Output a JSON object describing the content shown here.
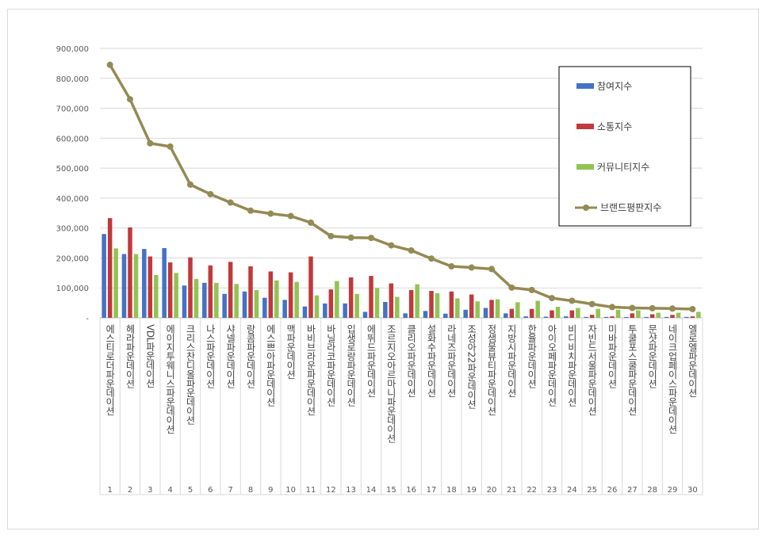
{
  "chart_data": {
    "type": "bar",
    "ylim": [
      0,
      900000
    ],
    "yticks": [
      "-",
      "100,000",
      "200,000",
      "300,000",
      "400,000",
      "500,000",
      "600,000",
      "700,000",
      "800,000",
      "900,000"
    ],
    "grid": true,
    "legend_position": "top-right",
    "ranks": [
      "1",
      "2",
      "3",
      "4",
      "5",
      "6",
      "7",
      "8",
      "9",
      "10",
      "11",
      "12",
      "13",
      "14",
      "15",
      "16",
      "17",
      "18",
      "19",
      "20",
      "21",
      "22",
      "23",
      "24",
      "25",
      "26",
      "27",
      "28",
      "29",
      "30"
    ],
    "categories": [
      "에스티로더파운데이션",
      "헤라파운데이션",
      "VDL파운데이션",
      "에이지투웨니스파운데이션",
      "크리스찬디올파운데이션",
      "나스파운데이션",
      "샤넬파운데이션",
      "랑콤파운데이션",
      "에스쁘아파운데이션",
      "맥파운데이션",
      "바비브라운파운데이션",
      "바닐라코파운데이션",
      "입생로랑파운데이션",
      "에뛰드파운데이션",
      "조르지오아르마니파운데이션",
      "클리오파운데이션",
      "설화수파운데이션",
      "라네즈파운데이션",
      "조성아22파운데이션",
      "정샘물뷰티파운데이션",
      "지방시파운데이션",
      "한율파운데이션",
      "아이오페파운데이션",
      "비디비치파운데이션",
      "자빈드서울파운데이션",
      "미바파운데이션",
      "투쿨포스쿨파운데이션",
      "문샷파운데이션",
      "네이크업페이스파운데이션",
      "엘로엘파운데이션"
    ],
    "series": [
      {
        "name": "참여지수",
        "kind": "bar",
        "color": "#4472c4",
        "values": [
          280000,
          213000,
          230000,
          233000,
          108000,
          117000,
          80000,
          88000,
          67000,
          60000,
          38000,
          48000,
          48000,
          20000,
          53000,
          15000,
          23000,
          14000,
          27000,
          33000,
          15000,
          5000,
          4000,
          5000,
          3000,
          3000,
          3000,
          3000,
          3000,
          3000
        ]
      },
      {
        "name": "소통지수",
        "kind": "bar",
        "color": "#c0393b",
        "values": [
          333000,
          302000,
          205000,
          185000,
          202000,
          175000,
          187000,
          172000,
          155000,
          152000,
          205000,
          95000,
          135000,
          140000,
          115000,
          93000,
          90000,
          88000,
          78000,
          60000,
          30000,
          30000,
          25000,
          25000,
          10000,
          5000,
          15000,
          12000,
          10000,
          5000
        ]
      },
      {
        "name": "커뮤니티지수",
        "kind": "bar",
        "color": "#92c353",
        "values": [
          232000,
          213000,
          143000,
          150000,
          130000,
          117000,
          113000,
          93000,
          125000,
          120000,
          75000,
          123000,
          80000,
          100000,
          70000,
          112000,
          82000,
          65000,
          55000,
          62000,
          52000,
          57000,
          37000,
          33000,
          30000,
          27000,
          25000,
          17000,
          17000,
          20000
        ]
      },
      {
        "name": "브랜드평판지수",
        "kind": "line",
        "color": "#948a54",
        "values": [
          845000,
          730000,
          583000,
          572000,
          445000,
          413000,
          385000,
          358000,
          348000,
          340000,
          318000,
          273000,
          268000,
          267000,
          242000,
          225000,
          198000,
          172000,
          168000,
          163000,
          101000,
          93000,
          66000,
          57000,
          46000,
          36000,
          33000,
          32000,
          31000,
          29000
        ]
      }
    ]
  }
}
